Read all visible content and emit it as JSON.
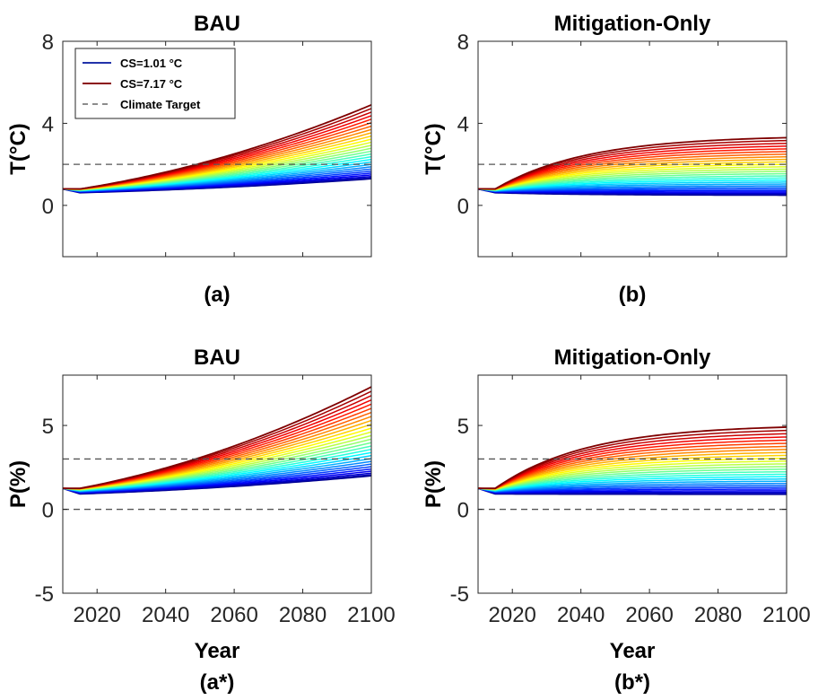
{
  "chart_data": [
    {
      "type": "line",
      "title": "BAU",
      "caption": "(a)",
      "xlabel": "",
      "ylabel": "T(°C)",
      "xlim": [
        2010,
        2100
      ],
      "ylim": [
        -2.5,
        8
      ],
      "yticks": [
        0,
        4,
        8
      ],
      "xticks": [
        2020,
        2040,
        2060,
        2080,
        2100
      ],
      "show_xtick_labels": false,
      "colormap": [
        "#00008f",
        "#0000ff",
        "#007fff",
        "#00ffff",
        "#7fff7f",
        "#ffff00",
        "#ff7f00",
        "#ff0000",
        "#7f0000"
      ],
      "ensemble": {
        "count": 28,
        "x_start": 2010,
        "start_value": 0.8,
        "dip_x": 2015,
        "dip_value": 0.62,
        "min_end_value": 1.3,
        "max_end_value": 4.9,
        "saturation_x": null
      },
      "reference_lines": [
        {
          "y": 2,
          "style": "dashed",
          "color": "#555555"
        }
      ],
      "legend": {
        "placement": "top-left",
        "entries": [
          {
            "label": "CS=1.01 °C",
            "color": "#2233aa",
            "style": "solid"
          },
          {
            "label": "CS=7.17 °C",
            "color": "#8b0d12",
            "style": "solid"
          },
          {
            "label": "Climate Target",
            "color": "#666666",
            "style": "dashed"
          }
        ]
      }
    },
    {
      "type": "line",
      "title": "Mitigation-Only",
      "caption": "(b)",
      "xlabel": "",
      "ylabel": "T(°C)",
      "xlim": [
        2010,
        2100
      ],
      "ylim": [
        -2.5,
        8
      ],
      "yticks": [
        0,
        4,
        8
      ],
      "xticks": [
        2020,
        2040,
        2060,
        2080,
        2100
      ],
      "show_xtick_labels": false,
      "colormap": [
        "#00008f",
        "#0000ff",
        "#007fff",
        "#00ffff",
        "#7fff7f",
        "#ffff00",
        "#ff7f00",
        "#ff0000",
        "#7f0000"
      ],
      "ensemble": {
        "count": 28,
        "x_start": 2010,
        "start_value": 0.8,
        "dip_x": 2015,
        "dip_value": 0.62,
        "min_end_value": 0.5,
        "max_end_value": 3.3,
        "saturation_x": 2040
      },
      "reference_lines": [
        {
          "y": 2,
          "style": "dashed",
          "color": "#555555"
        }
      ]
    },
    {
      "type": "line",
      "title": "BAU",
      "caption": "(a*)",
      "xlabel": "Year",
      "ylabel": "P(%)",
      "xlim": [
        2010,
        2100
      ],
      "ylim": [
        -5,
        8
      ],
      "yticks": [
        -5,
        0,
        5
      ],
      "xticks": [
        2020,
        2040,
        2060,
        2080,
        2100
      ],
      "show_xtick_labels": true,
      "colormap": [
        "#00008f",
        "#0000ff",
        "#007fff",
        "#00ffff",
        "#7fff7f",
        "#ffff00",
        "#ff7f00",
        "#ff0000",
        "#7f0000"
      ],
      "ensemble": {
        "count": 28,
        "x_start": 2010,
        "start_value": 1.25,
        "dip_x": 2015,
        "dip_value": 0.92,
        "min_end_value": 2.0,
        "max_end_value": 7.3,
        "saturation_x": null
      },
      "reference_lines": [
        {
          "y": 3,
          "style": "dashed",
          "color": "#555555"
        },
        {
          "y": 0,
          "style": "dashed",
          "color": "#555555"
        }
      ]
    },
    {
      "type": "line",
      "title": "Mitigation-Only",
      "caption": "(b*)",
      "xlabel": "Year",
      "ylabel": "P(%)",
      "xlim": [
        2010,
        2100
      ],
      "ylim": [
        -5,
        8
      ],
      "yticks": [
        -5,
        0,
        5
      ],
      "xticks": [
        2020,
        2040,
        2060,
        2080,
        2100
      ],
      "show_xtick_labels": true,
      "colormap": [
        "#00008f",
        "#0000ff",
        "#007fff",
        "#00ffff",
        "#7fff7f",
        "#ffff00",
        "#ff7f00",
        "#ff0000",
        "#7f0000"
      ],
      "ensemble": {
        "count": 28,
        "x_start": 2010,
        "start_value": 1.25,
        "dip_x": 2015,
        "dip_value": 0.92,
        "min_end_value": 0.9,
        "max_end_value": 4.9,
        "saturation_x": 2040
      },
      "reference_lines": [
        {
          "y": 3,
          "style": "dashed",
          "color": "#555555"
        },
        {
          "y": 0,
          "style": "dashed",
          "color": "#555555"
        }
      ]
    }
  ]
}
